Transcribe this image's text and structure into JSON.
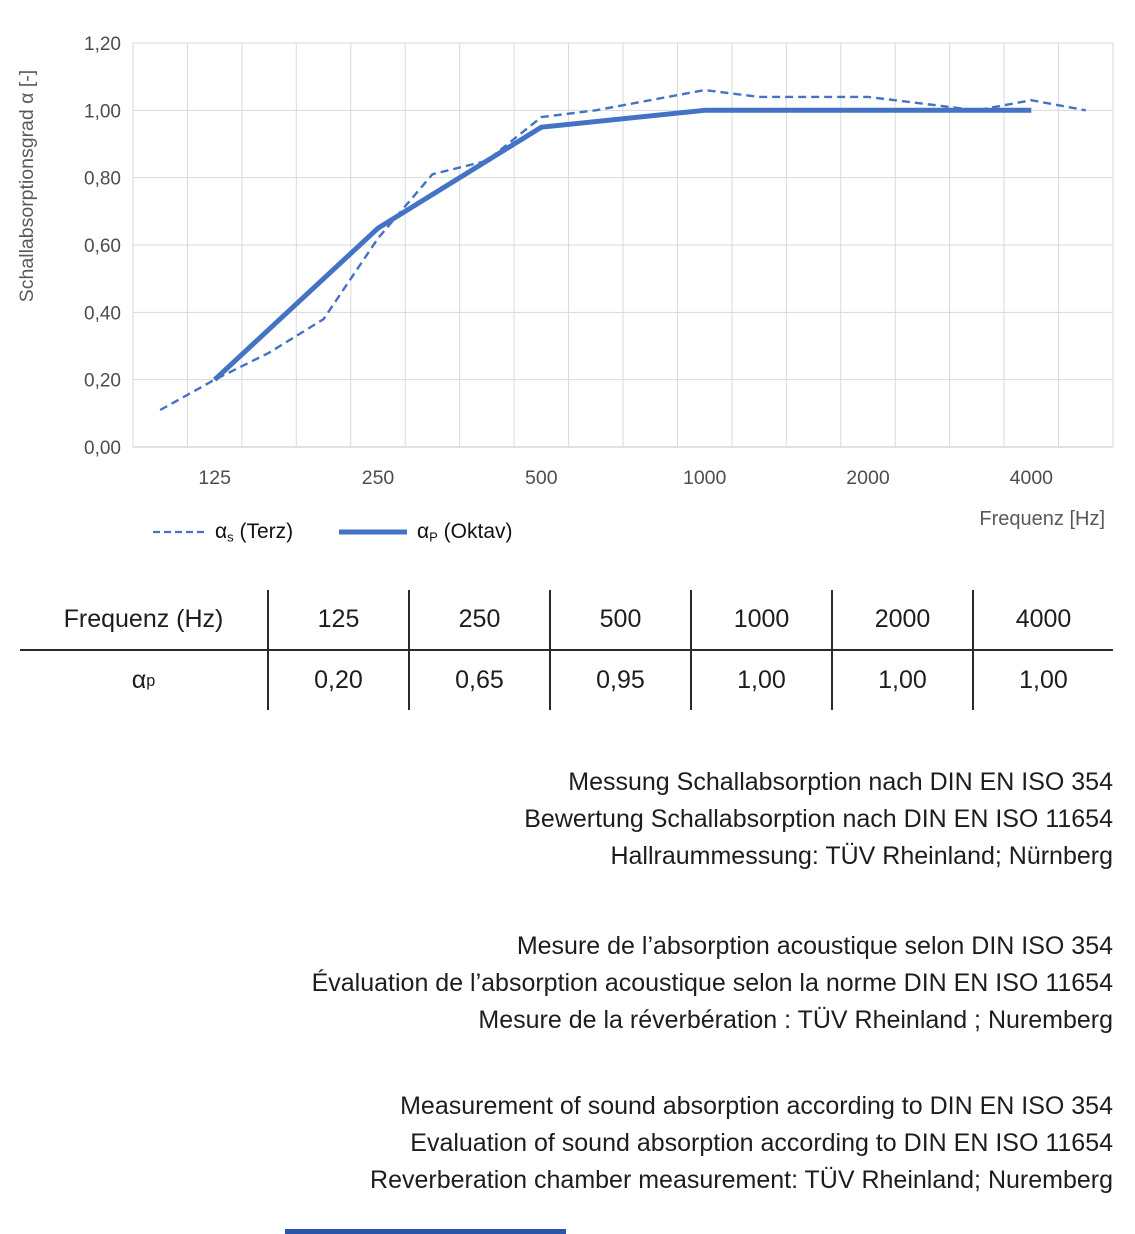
{
  "chart_data": {
    "type": "line",
    "title": "",
    "ylabel": "Schallabsorptionsgrad α [-]",
    "xlabel": "Frequenz [Hz]",
    "ylim": [
      0,
      1.2
    ],
    "ytick_step": 0.2,
    "ytick_labels": [
      "0,00",
      "0,20",
      "0,40",
      "0,60",
      "0,80",
      "1,00",
      "1,20"
    ],
    "categories": [
      100,
      125,
      160,
      200,
      250,
      315,
      400,
      500,
      630,
      800,
      1000,
      1250,
      1600,
      2000,
      2500,
      3150,
      4000,
      5000
    ],
    "xtick_indices": [
      1,
      4,
      7,
      10,
      13,
      16
    ],
    "xtick_labels": [
      "125",
      "250",
      "500",
      "1000",
      "2000",
      "4000"
    ],
    "grid": true,
    "legend_position": "bottom-left",
    "series": [
      {
        "name": "αs (Terz)",
        "style": "dashed",
        "values": [
          0.11,
          0.2,
          0.28,
          0.38,
          0.62,
          0.81,
          0.85,
          0.98,
          1.0,
          1.03,
          1.06,
          1.04,
          1.04,
          1.04,
          1.02,
          1.0,
          1.03,
          1.0
        ]
      },
      {
        "name": "αP (Oktav)",
        "style": "solid",
        "x_indices": [
          1,
          4,
          7,
          10,
          13,
          16
        ],
        "values": [
          0.2,
          0.65,
          0.95,
          1.0,
          1.0,
          1.0
        ]
      }
    ],
    "colors": {
      "line": "#4472C4",
      "grid": "#D9D9D9",
      "axis_line": "#C6C6C6",
      "tick_text": "#4d4d4d",
      "axis_title_text": "#595959"
    }
  },
  "legend": {
    "items": [
      {
        "symbol": "α",
        "sub": "s",
        "text": " (Terz)"
      },
      {
        "symbol": "α",
        "sub": "P",
        "text": " (Oktav)"
      }
    ]
  },
  "axis_titles": {
    "x": "Frequenz [Hz]",
    "y": "Schallabsorptionsgrad α [-]"
  },
  "table": {
    "header": [
      "Frequenz (Hz)",
      "125",
      "250",
      "500",
      "1000",
      "2000",
      "4000"
    ],
    "row_label": {
      "base": "α",
      "sub": "p"
    },
    "values": [
      "0,20",
      "0,65",
      "0,95",
      "1,00",
      "1,00",
      "1,00"
    ]
  },
  "notes": {
    "german": [
      "Messung Schallabsorption nach DIN EN ISO 354",
      "Bewertung Schallabsorption nach DIN EN ISO 11654",
      "Hallraummessung: TÜV Rheinland; Nürnberg"
    ],
    "french": [
      "Mesure de l’absorption acoustique selon DIN ISO 354",
      "Évaluation de l’absorption acoustique selon la norme DIN EN ISO 11654",
      "Mesure de la réverbération : TÜV Rheinland ; Nuremberg"
    ],
    "english": [
      "Measurement of sound absorption according to DIN EN ISO 354",
      "Evaluation of sound absorption according to DIN EN ISO 11654",
      "Reverberation chamber measurement: TÜV Rheinland; Nuremberg"
    ]
  },
  "footer": {
    "accent_color": "#2B55A8"
  }
}
